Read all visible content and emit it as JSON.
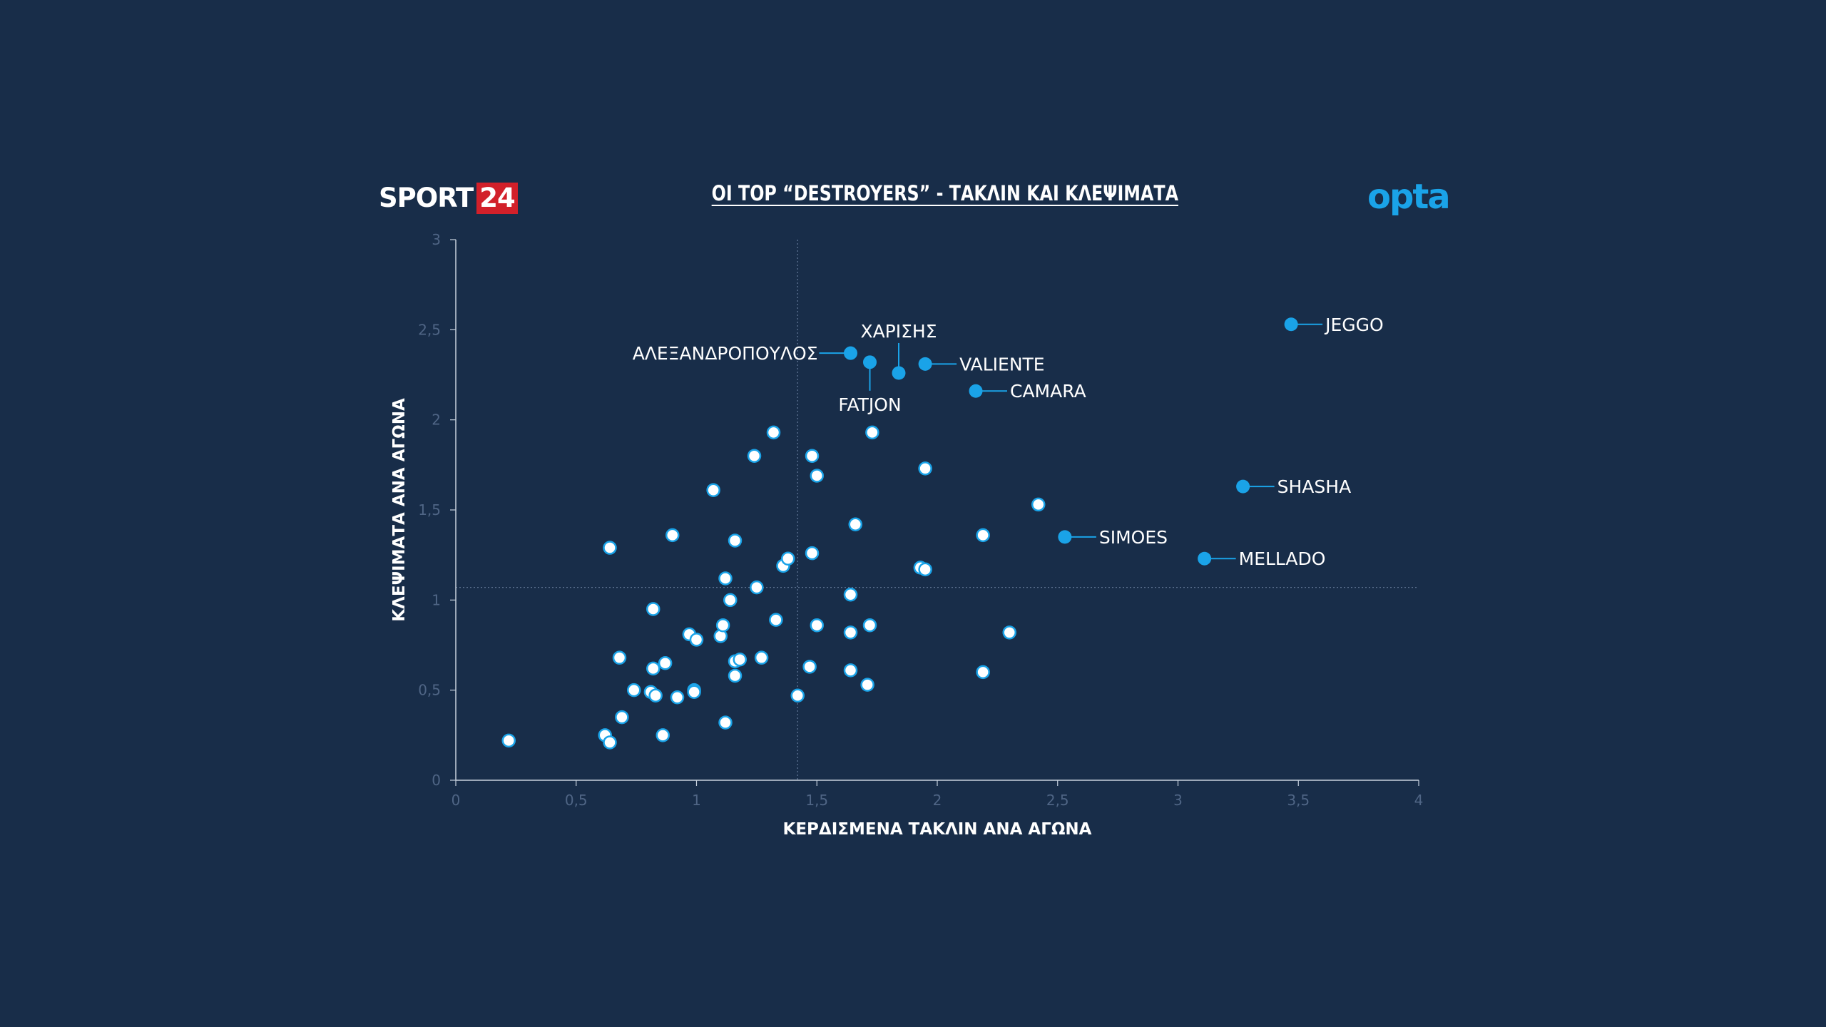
{
  "brand": {
    "left_logo_word": "SPORT",
    "left_logo_number": "24",
    "right_logo": "opta",
    "accent_red": "#d2202a",
    "accent_blue": "#1aa3e8",
    "background": "#182d49"
  },
  "chart_data": {
    "type": "scatter",
    "title": "ΟΙ TOP “DESTROYERS” - ΤΑΚΛΙΝ ΚΑΙ ΚΛΕΨΙΜΑΤΑ",
    "xlabel": "ΚΕΡΔΙΣΜΕΝΑ ΤΑΚΛΙΝ ΑΝΑ ΑΓΩΝΑ",
    "ylabel": "ΚΛΕΨΙΜΑΤΑ ΑΝΑ ΑΓΩΝΑ",
    "xlim": [
      0,
      4
    ],
    "ylim": [
      0,
      3
    ],
    "x_ticks": [
      "0",
      "0,5",
      "1",
      "1,5",
      "2",
      "2,5",
      "3",
      "3,5",
      "4"
    ],
    "y_ticks": [
      "0",
      "0,5",
      "1",
      "1,5",
      "2",
      "2,5",
      "3"
    ],
    "reference_lines": {
      "x": 1.42,
      "y": 1.07
    },
    "grid": false,
    "highlight_color": "#1aa3e8",
    "highlighted": [
      {
        "label": "JEGGO",
        "x": 3.47,
        "y": 2.53
      },
      {
        "label": "ΑΛΕΞΑΝΔΡΟΠΟΥΛΟΣ",
        "x": 1.64,
        "y": 2.37
      },
      {
        "label": "ΧΑΡΙΣΗΣ",
        "x": 1.84,
        "y": 2.26
      },
      {
        "label": "FATJON",
        "x": 1.72,
        "y": 2.32
      },
      {
        "label": "VALIENTE",
        "x": 1.95,
        "y": 2.31
      },
      {
        "label": "CAMARA",
        "x": 2.16,
        "y": 2.16
      },
      {
        "label": "SHASHA",
        "x": 3.27,
        "y": 1.63
      },
      {
        "label": "SIMOES",
        "x": 2.53,
        "y": 1.35
      },
      {
        "label": "MELLADO",
        "x": 3.11,
        "y": 1.23
      }
    ],
    "others": [
      [
        0.22,
        0.22
      ],
      [
        0.62,
        0.25
      ],
      [
        0.64,
        0.21
      ],
      [
        0.69,
        0.35
      ],
      [
        0.74,
        0.5
      ],
      [
        0.81,
        0.49
      ],
      [
        0.83,
        0.47
      ],
      [
        0.86,
        0.25
      ],
      [
        0.92,
        0.46
      ],
      [
        0.99,
        0.5
      ],
      [
        0.99,
        0.49
      ],
      [
        1.12,
        0.32
      ],
      [
        1.16,
        0.58
      ],
      [
        1.42,
        0.47
      ],
      [
        1.71,
        0.53
      ],
      [
        1.64,
        0.61
      ],
      [
        1.47,
        0.63
      ],
      [
        2.19,
        0.6
      ],
      [
        0.68,
        0.68
      ],
      [
        0.82,
        0.62
      ],
      [
        0.87,
        0.65
      ],
      [
        1.16,
        0.66
      ],
      [
        1.18,
        0.67
      ],
      [
        1.27,
        0.68
      ],
      [
        0.97,
        0.81
      ],
      [
        1.0,
        0.78
      ],
      [
        1.1,
        0.8
      ],
      [
        1.11,
        0.86
      ],
      [
        1.33,
        0.89
      ],
      [
        1.5,
        0.86
      ],
      [
        1.64,
        0.82
      ],
      [
        1.72,
        0.86
      ],
      [
        2.3,
        0.82
      ],
      [
        0.82,
        0.95
      ],
      [
        1.14,
        1.0
      ],
      [
        1.64,
        1.03
      ],
      [
        1.12,
        1.12
      ],
      [
        1.25,
        1.07
      ],
      [
        1.36,
        1.19
      ],
      [
        1.38,
        1.23
      ],
      [
        1.48,
        1.26
      ],
      [
        1.93,
        1.18
      ],
      [
        1.95,
        1.17
      ],
      [
        0.64,
        1.29
      ],
      [
        0.9,
        1.36
      ],
      [
        1.16,
        1.33
      ],
      [
        1.66,
        1.42
      ],
      [
        2.19,
        1.36
      ],
      [
        2.42,
        1.53
      ],
      [
        1.07,
        1.61
      ],
      [
        1.5,
        1.69
      ],
      [
        1.95,
        1.73
      ],
      [
        1.24,
        1.8
      ],
      [
        1.48,
        1.8
      ],
      [
        1.32,
        1.93
      ],
      [
        1.73,
        1.93
      ]
    ]
  }
}
